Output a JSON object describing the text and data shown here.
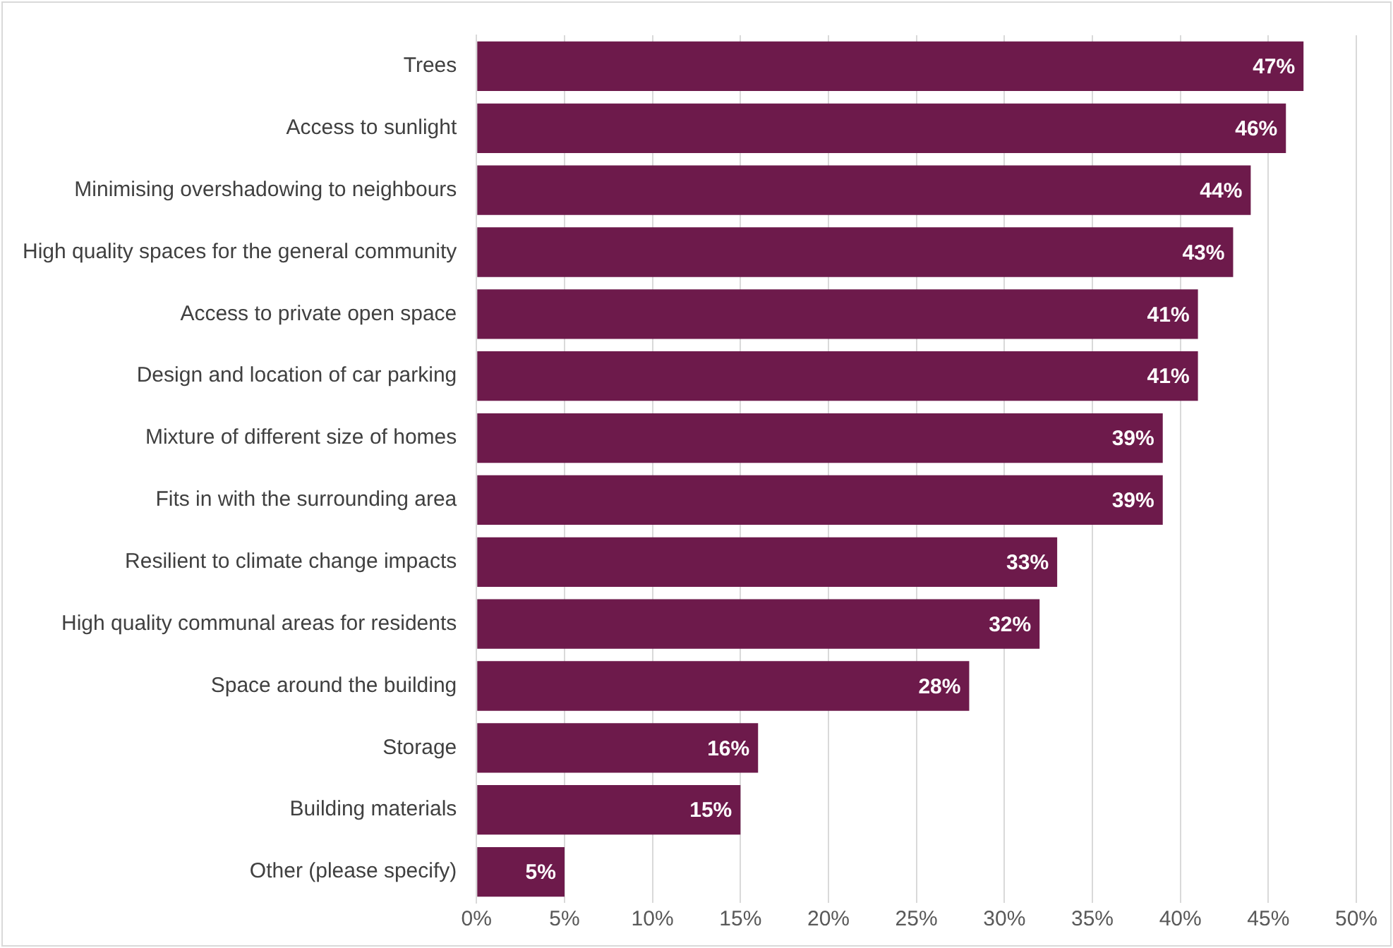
{
  "chart_data": {
    "type": "bar",
    "orientation": "horizontal",
    "categories": [
      "Trees",
      "Access to sunlight",
      "Minimising overshadowing to neighbours",
      "High quality spaces for the general community",
      "Access to private open space",
      "Design and location of car parking",
      "Mixture of different size of homes",
      "Fits in with the surrounding area",
      "Resilient to climate change impacts",
      "High quality communal areas for residents",
      "Space around the building",
      "Storage",
      "Building materials",
      "Other (please specify)"
    ],
    "values": [
      47,
      46,
      44,
      43,
      41,
      41,
      39,
      39,
      33,
      32,
      28,
      16,
      15,
      5
    ],
    "color": "#6d1a4b",
    "xlim": [
      0,
      50
    ],
    "xticks": [
      {
        "value": 0,
        "label": "0%"
      },
      {
        "value": 5,
        "label": "5%"
      },
      {
        "value": 10,
        "label": "10%"
      },
      {
        "value": 15,
        "label": "15%"
      },
      {
        "value": 20,
        "label": "20%"
      },
      {
        "value": 25,
        "label": "25%"
      },
      {
        "value": 30,
        "label": "30%"
      },
      {
        "value": 35,
        "label": "35%"
      },
      {
        "value": 40,
        "label": "40%"
      },
      {
        "value": 45,
        "label": "45%"
      },
      {
        "value": 50,
        "label": "50%"
      }
    ],
    "value_labels": [
      "47%",
      "46%",
      "44%",
      "43%",
      "41%",
      "41%",
      "39%",
      "39%",
      "33%",
      "32%",
      "28%",
      "16%",
      "15%",
      "5%"
    ],
    "grid": "x",
    "legend": false
  }
}
